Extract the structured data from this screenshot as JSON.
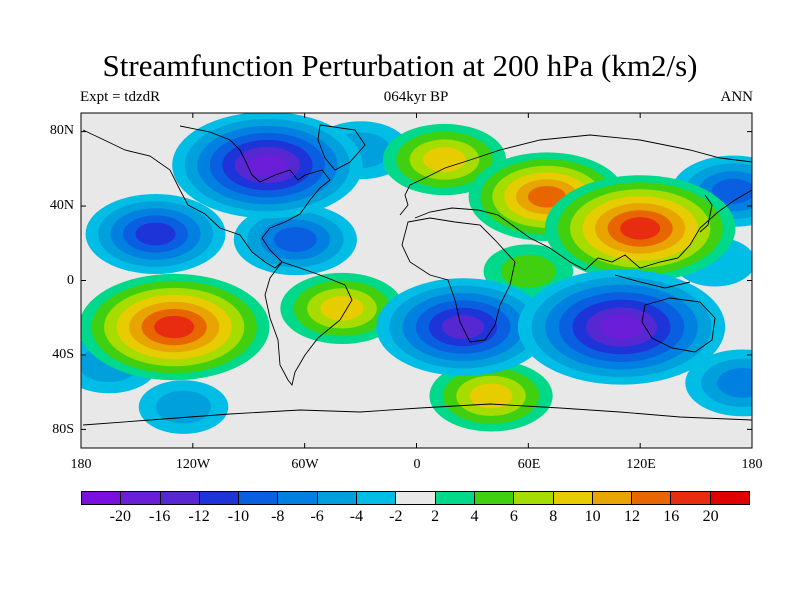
{
  "title": "Streamfunction Perturbation at 200 hPa (km2/s)",
  "experiment": "Expt = tdzdR",
  "period": "064kyr BP",
  "season": "ANN",
  "y_ticks": [
    "80N",
    "40N",
    "0",
    "40S",
    "80S"
  ],
  "x_ticks": [
    "180",
    "120W",
    "60W",
    "0",
    "60E",
    "120E",
    "180"
  ],
  "colorbar": {
    "labels": [
      "-20",
      "-16",
      "-12",
      "-10",
      "-8",
      "-6",
      "-4",
      "-2",
      "2",
      "4",
      "6",
      "8",
      "10",
      "12",
      "16",
      "20"
    ],
    "colors": [
      "#7a10e0",
      "#6a1ed8",
      "#5628d2",
      "#1c34d8",
      "#0a5ee0",
      "#0080e0",
      "#00a0dc",
      "#00bde6",
      "#e8e8e8",
      "#00d88a",
      "#40d010",
      "#a6dc00",
      "#e6cc00",
      "#e8a400",
      "#e86600",
      "#e82c10",
      "#e00000"
    ]
  },
  "chart_data": {
    "type": "heatmap",
    "title": "Streamfunction Perturbation at 200 hPa (km2/s)",
    "variable": "streamfunction perturbation",
    "units": "km2/s",
    "xlim": [
      -180,
      180
    ],
    "ylim": [
      -90,
      90
    ],
    "levels": [
      -20,
      -16,
      -12,
      -10,
      -8,
      -6,
      -4,
      -2,
      2,
      4,
      6,
      8,
      10,
      12,
      16,
      20
    ],
    "features": [
      {
        "lon": -80,
        "lat": 62,
        "value": -16
      },
      {
        "lon": -140,
        "lat": 25,
        "value": -10
      },
      {
        "lon": -65,
        "lat": 22,
        "value": -8
      },
      {
        "lon": 170,
        "lat": 48,
        "value": -8
      },
      {
        "lon": -30,
        "lat": 70,
        "value": -5
      },
      {
        "lon": -130,
        "lat": -25,
        "value": 16
      },
      {
        "lon": -165,
        "lat": -45,
        "value": -5
      },
      {
        "lon": -40,
        "lat": -15,
        "value": 8
      },
      {
        "lon": 25,
        "lat": -25,
        "value": -14
      },
      {
        "lon": 110,
        "lat": -25,
        "value": -18
      },
      {
        "lon": 120,
        "lat": 28,
        "value": 16
      },
      {
        "lon": 70,
        "lat": 45,
        "value": 12
      },
      {
        "lon": 15,
        "lat": 65,
        "value": 8
      },
      {
        "lon": 60,
        "lat": 5,
        "value": 4
      },
      {
        "lon": 40,
        "lat": -62,
        "value": 8
      },
      {
        "lon": 175,
        "lat": -55,
        "value": -7
      },
      {
        "lon": -125,
        "lat": -68,
        "value": -4
      },
      {
        "lon": 160,
        "lat": 10,
        "value": -3
      }
    ]
  }
}
